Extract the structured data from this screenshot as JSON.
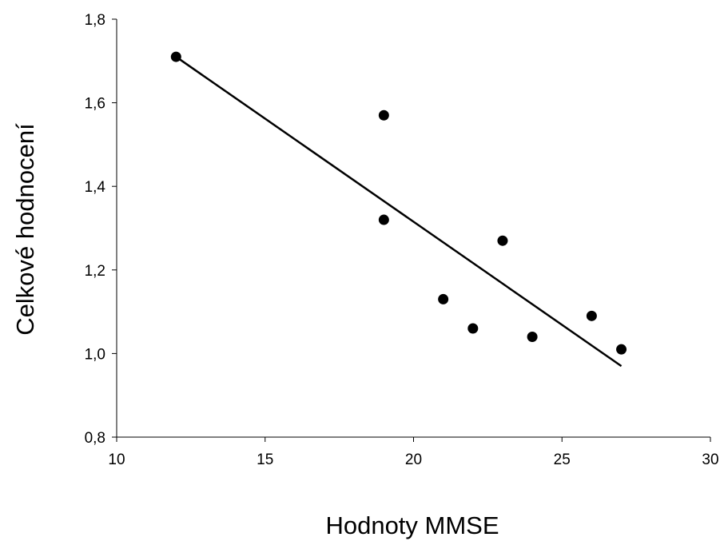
{
  "chart_data": {
    "type": "scatter",
    "title": "",
    "xlabel": "Hodnoty MMSE",
    "ylabel": "Celkové hodnocení",
    "xlim": [
      10,
      30
    ],
    "ylim": [
      0.8,
      1.8
    ],
    "xticks": [
      10,
      15,
      20,
      25,
      30
    ],
    "yticks": [
      0.8,
      1.0,
      1.2,
      1.4,
      1.6,
      1.8
    ],
    "xtick_labels": [
      "10",
      "15",
      "20",
      "25",
      "30"
    ],
    "ytick_labels": [
      "0,8",
      "1,0",
      "1,2",
      "1,4",
      "1,6",
      "1,8"
    ],
    "grid": false,
    "legend": "none",
    "marker_color": "#000000",
    "points": [
      {
        "x": 12,
        "y": 1.71
      },
      {
        "x": 19,
        "y": 1.57
      },
      {
        "x": 19,
        "y": 1.32
      },
      {
        "x": 21,
        "y": 1.13
      },
      {
        "x": 22,
        "y": 1.06
      },
      {
        "x": 23,
        "y": 1.27
      },
      {
        "x": 24,
        "y": 1.04
      },
      {
        "x": 26,
        "y": 1.09
      },
      {
        "x": 27,
        "y": 1.01
      }
    ],
    "trendline": {
      "type": "linear",
      "x": [
        12,
        27
      ],
      "y": [
        1.71,
        0.97
      ],
      "color": "#000000"
    }
  }
}
